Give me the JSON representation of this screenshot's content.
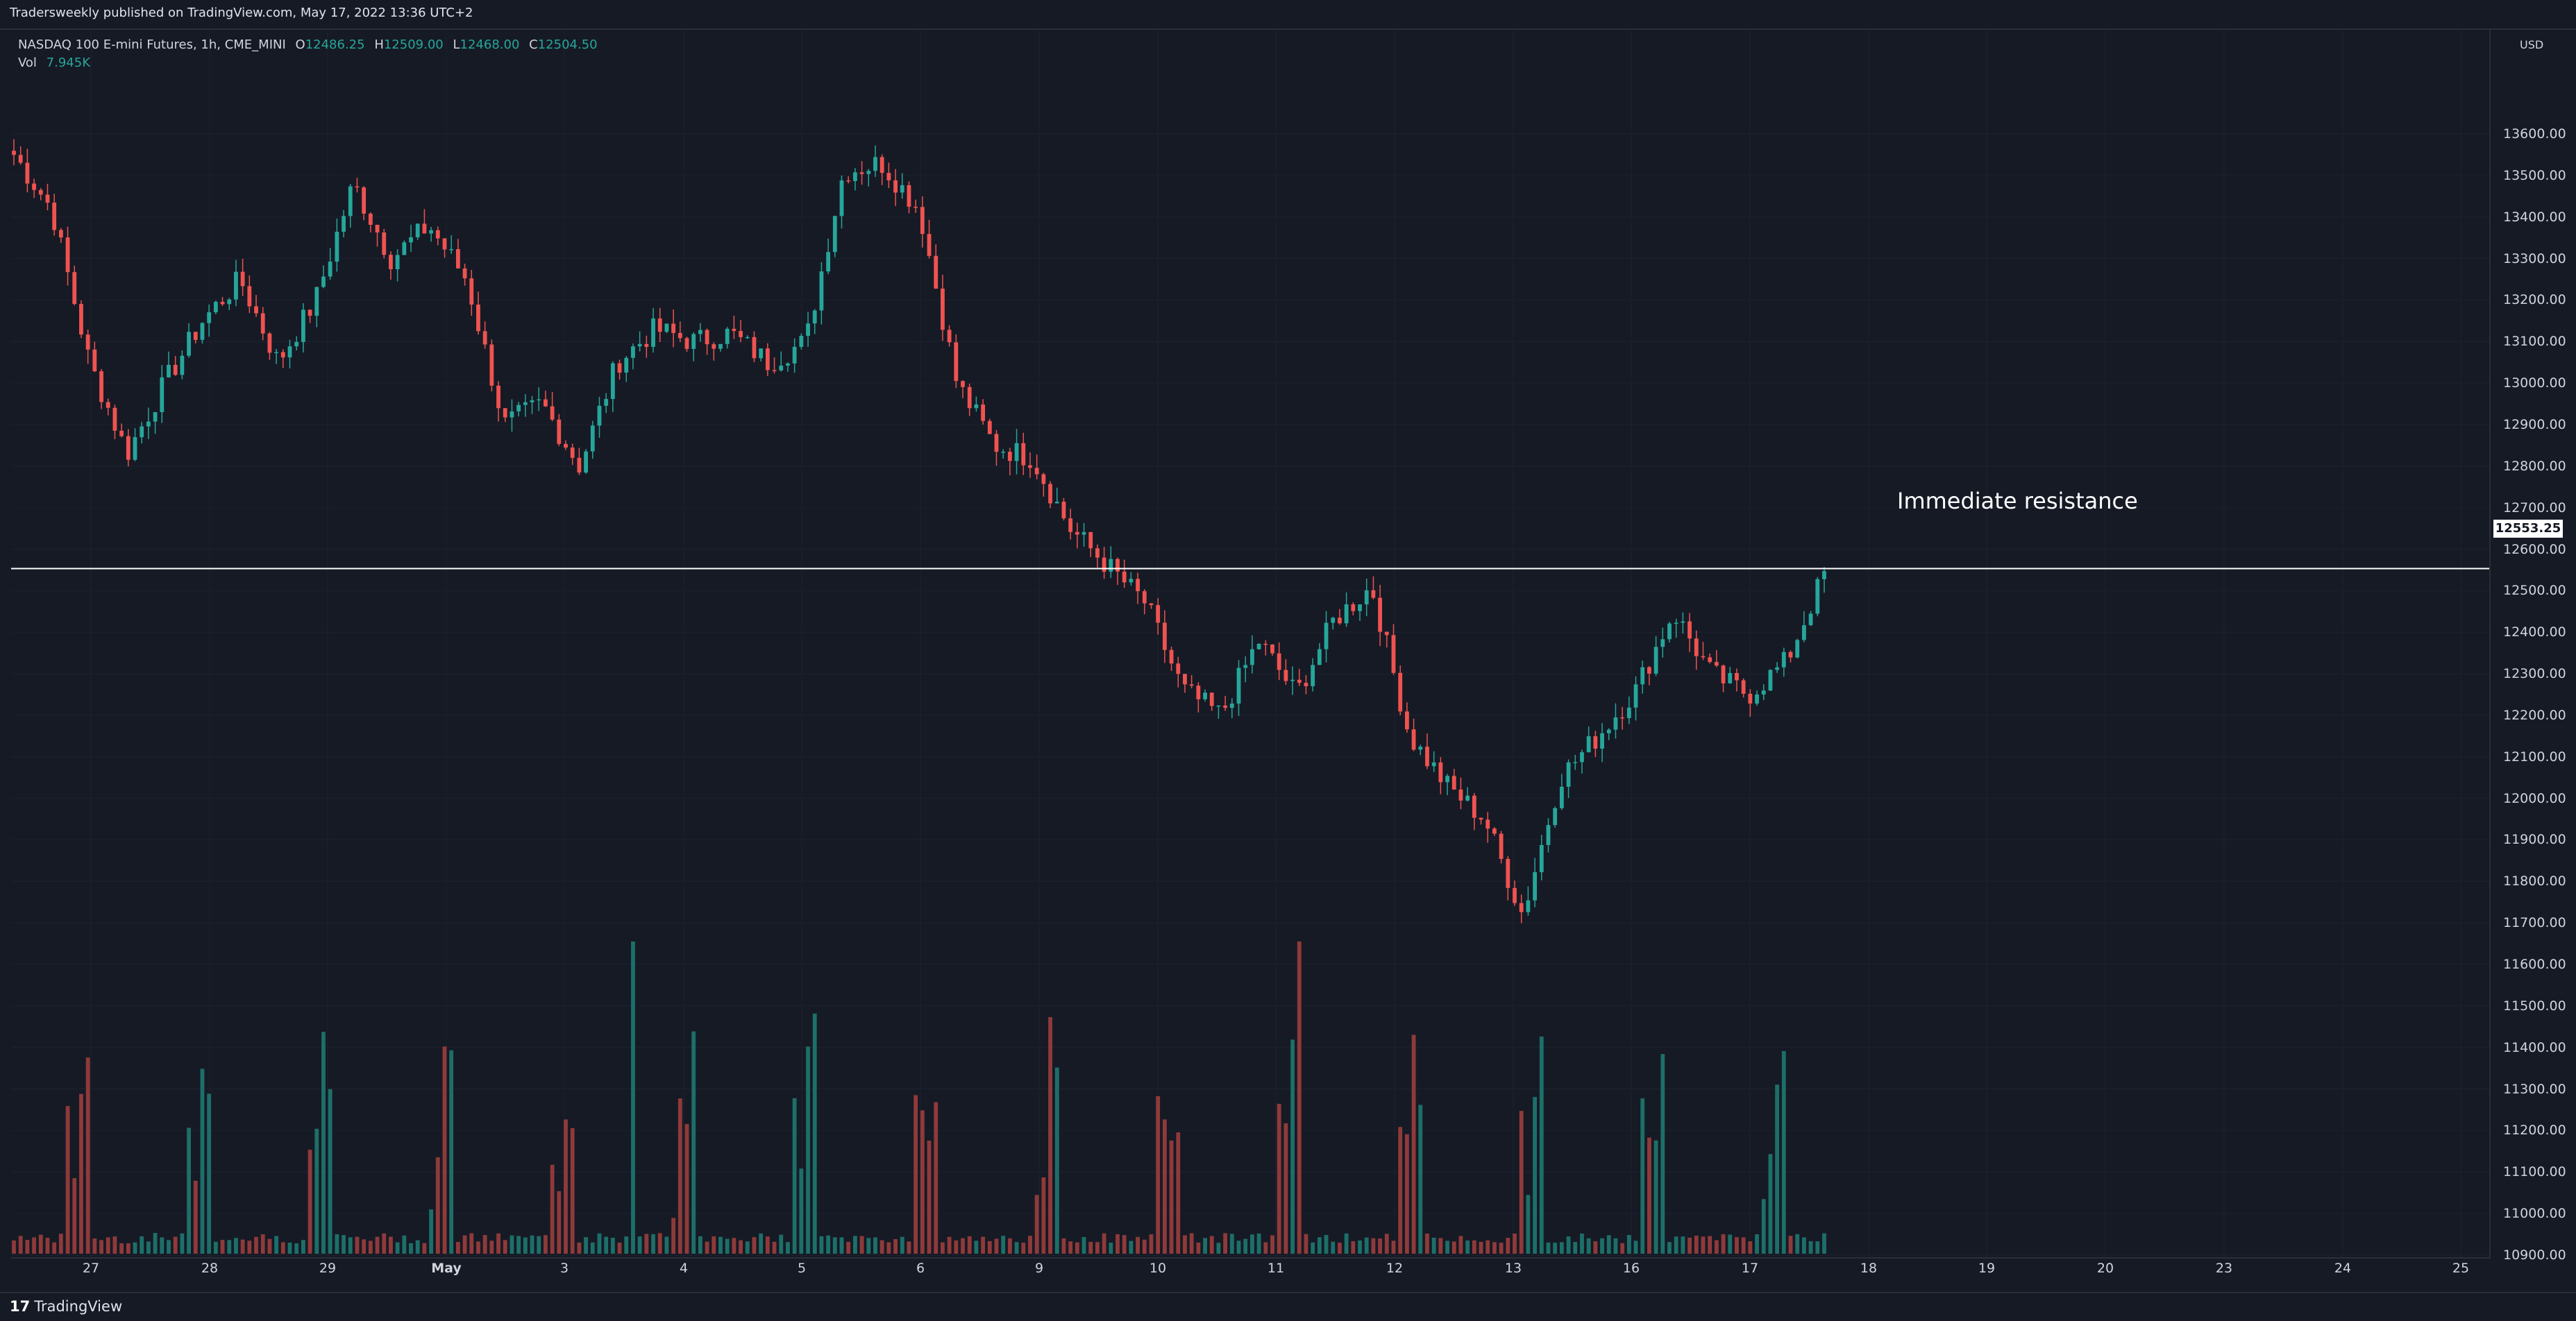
{
  "header": {
    "published": "Tradersweekly published on TradingView.com, May 17, 2022 13:36 UTC+2"
  },
  "legend": {
    "symbol": "NASDAQ 100 E-mini Futures, 1h, CME_MINI",
    "open_label": "O",
    "open": "12486.25",
    "high_label": "H",
    "high": "12509.00",
    "low_label": "L",
    "low": "12468.00",
    "close_label": "C",
    "close": "12504.50",
    "vol_label": "Vol",
    "vol": "7.945K"
  },
  "price_scale": {
    "currency": "USD",
    "current_price": "12553.25",
    "ticks": [
      "13600.00",
      "13500.00",
      "13400.00",
      "13300.00",
      "13200.00",
      "13100.00",
      "13000.00",
      "12900.00",
      "12800.00",
      "12700.00",
      "12600.00",
      "12500.00",
      "12400.00",
      "12300.00",
      "12200.00",
      "12100.00",
      "12000.00",
      "11900.00",
      "11800.00",
      "11700.00",
      "11600.00",
      "11500.00",
      "11400.00",
      "11300.00",
      "11200.00",
      "11100.00",
      "11000.00",
      "10900.00"
    ]
  },
  "time_scale": {
    "ticks": [
      "27",
      "28",
      "29",
      "May",
      "3",
      "4",
      "5",
      "6",
      "9",
      "10",
      "11",
      "12",
      "13",
      "16",
      "17",
      "18",
      "19",
      "20",
      "23",
      "24",
      "25"
    ]
  },
  "drawings": {
    "resistance_label": "Immediate resistance",
    "resistance_price": 12553.25
  },
  "colors": {
    "background": "#161a25",
    "up": "#26a69a",
    "down": "#ef5350",
    "up_volume": "#1d6f69",
    "down_volume": "#8f3a3a",
    "grid": "#1e2230",
    "line": "#ffffff"
  },
  "chart_data": {
    "type": "candlestick",
    "title": "NASDAQ 100 E-mini Futures, 1h, CME_MINI",
    "ylim": [
      10850,
      13700
    ],
    "x_labels": [
      "27",
      "28",
      "29",
      "May",
      "3",
      "4",
      "5",
      "6",
      "9",
      "10",
      "11",
      "12",
      "13",
      "16",
      "17"
    ],
    "key_points": [
      {
        "x": "26",
        "close": 13550
      },
      {
        "x": "26",
        "close": 13420
      },
      {
        "x": "27",
        "close": 13050
      },
      {
        "x": "27",
        "close": 12830
      },
      {
        "x": "27",
        "close": 13000
      },
      {
        "x": "28",
        "close": 13150
      },
      {
        "x": "28",
        "close": 13250
      },
      {
        "x": "28",
        "close": 13050
      },
      {
        "x": "29",
        "close": 13200
      },
      {
        "x": "29",
        "close": 13480
      },
      {
        "x": "29",
        "close": 13300
      },
      {
        "x": "29",
        "close": 13380
      },
      {
        "x": "May",
        "close": 13250
      },
      {
        "x": "May",
        "close": 12900
      },
      {
        "x": "May",
        "close": 12950
      },
      {
        "x": "3",
        "close": 12800
      },
      {
        "x": "3",
        "close": 13050
      },
      {
        "x": "3",
        "close": 13130
      },
      {
        "x": "4",
        "close": 13100
      },
      {
        "x": "4",
        "close": 13120
      },
      {
        "x": "4",
        "close": 13050
      },
      {
        "x": "5",
        "close": 13100
      },
      {
        "x": "5",
        "close": 13510
      },
      {
        "x": "5",
        "close": 13530
      },
      {
        "x": "5",
        "close": 13420
      },
      {
        "x": "6",
        "close": 13000
      },
      {
        "x": "6",
        "close": 12850
      },
      {
        "x": "6",
        "close": 12820
      },
      {
        "x": "9",
        "close": 12650
      },
      {
        "x": "9",
        "close": 12560
      },
      {
        "x": "9",
        "close": 12470
      },
      {
        "x": "10",
        "close": 12260
      },
      {
        "x": "10",
        "close": 12200
      },
      {
        "x": "10",
        "close": 12380
      },
      {
        "x": "11",
        "close": 12250
      },
      {
        "x": "11",
        "close": 12430
      },
      {
        "x": "11",
        "close": 12510
      },
      {
        "x": "12",
        "close": 12150
      },
      {
        "x": "12",
        "close": 12030
      },
      {
        "x": "12",
        "close": 11950
      },
      {
        "x": "13",
        "close": 11720
      },
      {
        "x": "13",
        "close": 12050
      },
      {
        "x": "13",
        "close": 12150
      },
      {
        "x": "16",
        "close": 12260
      },
      {
        "x": "16",
        "close": 12450
      },
      {
        "x": "16",
        "close": 12300
      },
      {
        "x": "17",
        "close": 12250
      },
      {
        "x": "17",
        "close": 12330
      },
      {
        "x": "17",
        "close": 12540
      }
    ],
    "volume_peaks": [
      {
        "x": "27",
        "volume": "high"
      },
      {
        "x": "28",
        "volume": "high"
      },
      {
        "x": "29",
        "volume": "high"
      },
      {
        "x": "May",
        "volume": "high"
      },
      {
        "x": "3",
        "volume": "high"
      },
      {
        "x": "4",
        "volume": "high"
      },
      {
        "x": "5",
        "volume": "highest"
      },
      {
        "x": "6",
        "volume": "high"
      },
      {
        "x": "9",
        "volume": "high"
      },
      {
        "x": "10",
        "volume": "high"
      },
      {
        "x": "11",
        "volume": "high"
      },
      {
        "x": "12",
        "volume": "high"
      },
      {
        "x": "13",
        "volume": "high"
      },
      {
        "x": "16",
        "volume": "medium"
      },
      {
        "x": "17",
        "volume": "medium"
      }
    ]
  }
}
